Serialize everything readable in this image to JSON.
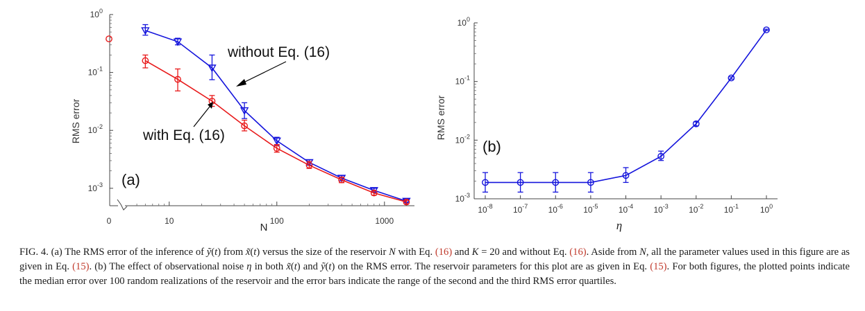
{
  "chart_data": [
    {
      "type": "line",
      "panel_label": "(a)",
      "xlabel": "N",
      "ylabel": "RMS error",
      "xscale": "log",
      "yscale": "log",
      "xlim": [
        4.5,
        1900
      ],
      "ylim": [
        0.0005,
        1.0
      ],
      "x_tick_labels": [
        "0",
        "10",
        "100",
        "1000"
      ],
      "y_tick_labels": [
        {
          "base": "10",
          "exp": "0"
        },
        {
          "base": "10",
          "exp": "-1"
        },
        {
          "base": "10",
          "exp": "-2"
        },
        {
          "base": "10",
          "exp": "-3"
        }
      ],
      "outlier_at_zero": {
        "x": 0,
        "y": 0.38,
        "color": "#e8191a",
        "marker": "circle"
      },
      "annotations": [
        {
          "text": "without Eq. (16)",
          "series": "without Eq. (16)"
        },
        {
          "text": "with Eq. (16)",
          "series": "with Eq. (16)"
        }
      ],
      "series": [
        {
          "name": "without Eq. (16)",
          "color": "#1414dc",
          "marker": "triangle-down",
          "x": [
            6,
            12,
            25,
            50,
            100,
            200,
            400,
            800,
            1600
          ],
          "y": [
            0.53,
            0.34,
            0.12,
            0.022,
            0.0066,
            0.0028,
            0.0015,
            0.00092,
            0.0006
          ],
          "err_low": [
            0.44,
            0.3,
            0.075,
            0.016,
            0.0055,
            0.0025,
            0.00135,
            0.00085,
            0.00057
          ],
          "err_high": [
            0.67,
            0.39,
            0.2,
            0.03,
            0.0076,
            0.0031,
            0.00165,
            0.001,
            0.00065
          ]
        },
        {
          "name": "with Eq. (16)",
          "color": "#e8191a",
          "marker": "circle",
          "x": [
            6,
            12,
            25,
            50,
            100,
            200,
            400,
            800,
            1600
          ],
          "y": [
            0.16,
            0.076,
            0.032,
            0.012,
            0.0049,
            0.0025,
            0.0014,
            0.00083,
            0.00058
          ],
          "err_low": [
            0.12,
            0.048,
            0.026,
            0.0098,
            0.0042,
            0.0022,
            0.00125,
            0.00076,
            0.00054
          ],
          "err_high": [
            0.2,
            0.115,
            0.04,
            0.015,
            0.0057,
            0.0029,
            0.00155,
            0.0009,
            0.00062
          ]
        }
      ]
    },
    {
      "type": "line",
      "panel_label": "(b)",
      "xlabel": "η",
      "ylabel": "RMS error",
      "xscale": "log",
      "yscale": "log",
      "xlim": [
        1e-08,
        1
      ],
      "ylim": [
        0.001,
        1.0
      ],
      "x_tick_labels": [
        {
          "base": "10",
          "exp": "-8"
        },
        {
          "base": "10",
          "exp": "-7"
        },
        {
          "base": "10",
          "exp": "-6"
        },
        {
          "base": "10",
          "exp": "-5"
        },
        {
          "base": "10",
          "exp": "-4"
        },
        {
          "base": "10",
          "exp": "-3"
        },
        {
          "base": "10",
          "exp": "-2"
        },
        {
          "base": "10",
          "exp": "-1"
        },
        {
          "base": "10",
          "exp": "0"
        }
      ],
      "y_tick_labels": [
        {
          "base": "10",
          "exp": "0"
        },
        {
          "base": "10",
          "exp": "-1"
        },
        {
          "base": "10",
          "exp": "-2"
        },
        {
          "base": "10",
          "exp": "-3"
        }
      ],
      "series": [
        {
          "name": "noise",
          "color": "#1414dc",
          "marker": "circle",
          "x": [
            1e-08,
            1e-07,
            1e-06,
            1e-05,
            0.0001,
            0.001,
            0.01,
            0.1,
            1
          ],
          "y": [
            0.0019,
            0.0019,
            0.0019,
            0.0019,
            0.0025,
            0.0053,
            0.019,
            0.115,
            0.76
          ],
          "err_low": [
            0.0013,
            0.0013,
            0.0013,
            0.0013,
            0.0019,
            0.0045,
            0.0175,
            0.11,
            0.74
          ],
          "err_high": [
            0.0028,
            0.0028,
            0.0028,
            0.0028,
            0.0034,
            0.0065,
            0.0205,
            0.12,
            0.78
          ]
        }
      ]
    }
  ],
  "caption": {
    "c01": "FIG. 4. (a) The RMS error of the inference of ",
    "c02": "ỹ",
    "c03": "(",
    "c04": "t",
    "c05": ") from ",
    "c06": "x̃",
    "c07": "(",
    "c08": "t",
    "c09": ") versus the size of the reservoir ",
    "c10": "N",
    "c11": " with Eq. ",
    "c12": "(16)",
    "c13": " and ",
    "c14": "K",
    "c15": " = 20 and without Eq. ",
    "c16": "(16)",
    "c17": ". Aside from ",
    "c18": "N",
    "c19": ", all the parameter values used in this figure are as given in Eq. ",
    "c20": "(15)",
    "c21": ". (b) The effect of observational noise ",
    "c22": "η",
    "c23": " in both ",
    "c24": "x̃",
    "c25": "(",
    "c26": "t",
    "c27": ") and ",
    "c28": "ỹ",
    "c29": "(",
    "c30": "t",
    "c31": ") on the RMS error. The reservoir parameters for this plot are as given in Eq. ",
    "c32": "(15)",
    "c33": ". For both figures, the plotted points indicate the median error over 100 random realizations of the reservoir and the error bars indicate the range of the second and the third RMS error quartiles."
  }
}
